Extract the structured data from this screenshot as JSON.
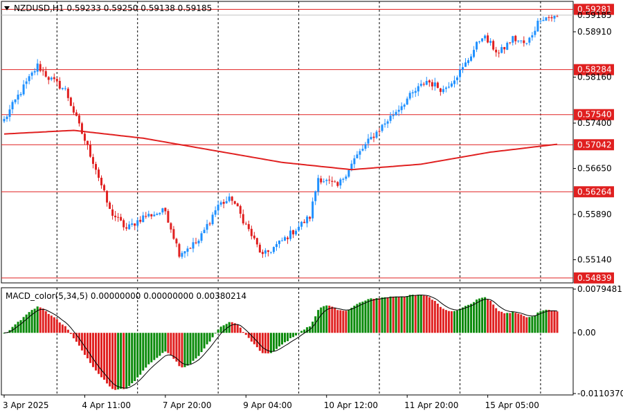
{
  "window": {
    "symbol_header": "NZDUSD,H1  0.59233 0.59250 0.59138 0.59185",
    "macd_header": "MACD_color(5,34,5) 0.00000000 0.00000000 0.00380214",
    "menu_icon": "triangle-down-icon"
  },
  "colors": {
    "bull": "#1e90ff",
    "bear": "#e02020",
    "ma": "#e02020",
    "hline": "#e02020",
    "macd_pos_up": "#0a8a0a",
    "macd_red": "#e02020",
    "signal": "#000000",
    "grid": "#000000",
    "label_bg": "#e02020",
    "label_fg": "#ffffff"
  },
  "chart_data": [
    {
      "type": "candlestick",
      "title": "NZDUSD,H1",
      "ohlc_last": {
        "open": 0.59233,
        "high": 0.5925,
        "low": 0.59138,
        "close": 0.59185
      },
      "ylim": [
        0.5478,
        0.5939
      ],
      "y_ticks": [
        "0.58910",
        "0.58160",
        "0.57400",
        "0.56650",
        "0.55890",
        "0.55140"
      ],
      "current_price_label": "0.59185",
      "horizontal_levels": [
        {
          "value": 0.59281,
          "label": "0.59281"
        },
        {
          "value": 0.58284,
          "label": "0.58284"
        },
        {
          "value": 0.5754,
          "label": "0.57540"
        },
        {
          "value": 0.57042,
          "label": "0.57042"
        },
        {
          "value": 0.56264,
          "label": "0.56264"
        },
        {
          "value": 0.54839,
          "label": "0.54839"
        }
      ],
      "x_ticks": [
        "3 Apr 2025",
        "4 Apr 11:00",
        "7 Apr 20:00",
        "9 Apr 04:00",
        "10 Apr 12:00",
        "11 Apr 20:00",
        "15 Apr 05:00"
      ],
      "closes_anchors": [
        {
          "x": 0,
          "y": 0.5745
        },
        {
          "x": 5,
          "y": 0.5785
        },
        {
          "x": 12,
          "y": 0.5835
        },
        {
          "x": 16,
          "y": 0.5815
        },
        {
          "x": 22,
          "y": 0.5795
        },
        {
          "x": 27,
          "y": 0.5735
        },
        {
          "x": 33,
          "y": 0.5665
        },
        {
          "x": 38,
          "y": 0.5595
        },
        {
          "x": 44,
          "y": 0.5565
        },
        {
          "x": 50,
          "y": 0.5585
        },
        {
          "x": 58,
          "y": 0.5595
        },
        {
          "x": 63,
          "y": 0.5525
        },
        {
          "x": 70,
          "y": 0.5545
        },
        {
          "x": 77,
          "y": 0.5605
        },
        {
          "x": 82,
          "y": 0.5615
        },
        {
          "x": 86,
          "y": 0.558
        },
        {
          "x": 93,
          "y": 0.552
        },
        {
          "x": 100,
          "y": 0.5545
        },
        {
          "x": 110,
          "y": 0.5585
        },
        {
          "x": 113,
          "y": 0.565
        },
        {
          "x": 120,
          "y": 0.5635
        },
        {
          "x": 126,
          "y": 0.568
        },
        {
          "x": 132,
          "y": 0.5715
        },
        {
          "x": 138,
          "y": 0.5745
        },
        {
          "x": 145,
          "y": 0.578
        },
        {
          "x": 152,
          "y": 0.581
        },
        {
          "x": 158,
          "y": 0.5795
        },
        {
          "x": 165,
          "y": 0.583
        },
        {
          "x": 172,
          "y": 0.5885
        },
        {
          "x": 178,
          "y": 0.5855
        },
        {
          "x": 183,
          "y": 0.588
        },
        {
          "x": 188,
          "y": 0.587
        },
        {
          "x": 193,
          "y": 0.5915
        },
        {
          "x": 199,
          "y": 0.5915
        }
      ],
      "moving_average": [
        {
          "x": 0,
          "y": 0.5722
        },
        {
          "x": 25,
          "y": 0.5728
        },
        {
          "x": 50,
          "y": 0.5715
        },
        {
          "x": 75,
          "y": 0.5695
        },
        {
          "x": 100,
          "y": 0.5675
        },
        {
          "x": 125,
          "y": 0.5663
        },
        {
          "x": 150,
          "y": 0.5672
        },
        {
          "x": 175,
          "y": 0.5692
        },
        {
          "x": 199,
          "y": 0.5705
        }
      ]
    },
    {
      "type": "bar",
      "title": "MACD_color(5,34,5)",
      "ylim": [
        -0.01104,
        0.00795
      ],
      "y_ticks": [
        "0.0079481",
        "0.00",
        "-0.0110370"
      ]
    }
  ]
}
